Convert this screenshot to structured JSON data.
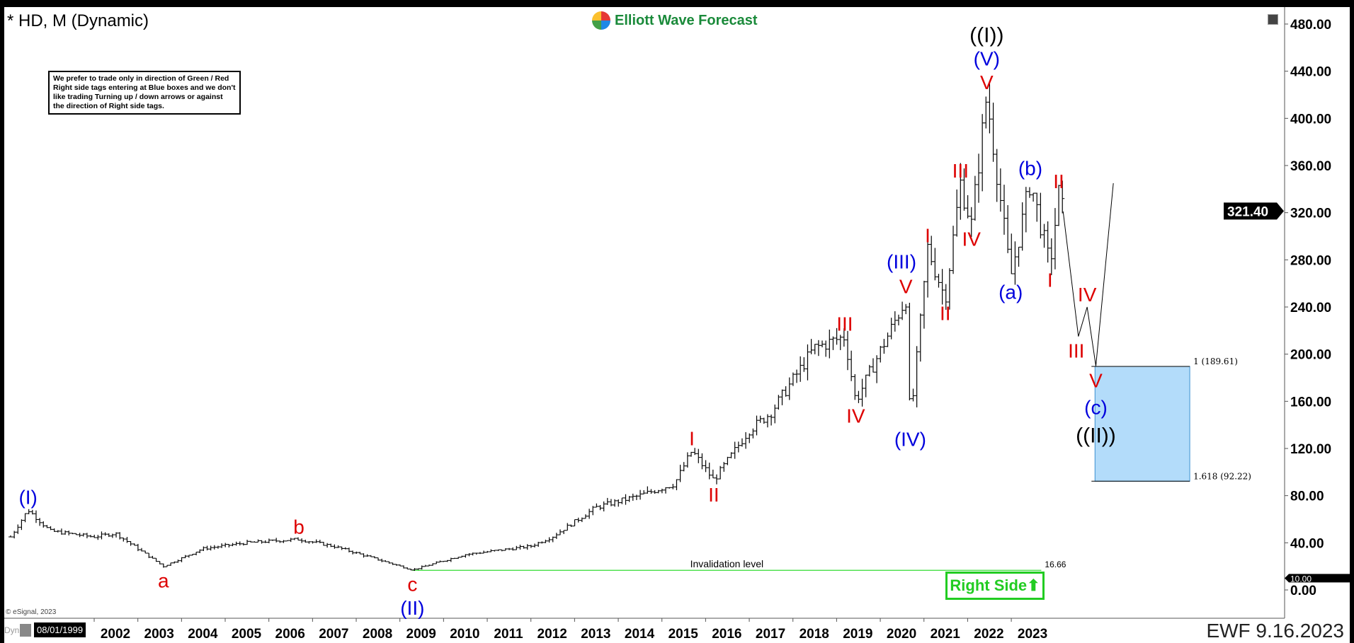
{
  "header": {
    "title": "* HD, M (Dynamic)",
    "logo": "Elliott Wave Forecast"
  },
  "note": "We prefer to trade only in direction of Green / Red Right side tags entering at Blue boxes and we don't like trading Turning up / down arrows or against the direction of Right side tags.",
  "footer": {
    "dyn": "Dyn",
    "start_date": "08/01/1999",
    "copyright": "© eSignal, 2023",
    "stamp": "EWF 9.16.2023"
  },
  "right_side": {
    "label": "Right Side",
    "arrow": "⬆",
    "color": "#22cc22"
  },
  "chart_data": {
    "type": "ohlc-bar",
    "symbol": "HD",
    "interval": "M",
    "ylim": [
      -20,
      500
    ],
    "yticks": [
      "480.00",
      "440.00",
      "400.00",
      "360.00",
      "320.00",
      "280.00",
      "240.00",
      "200.00",
      "160.00",
      "120.00",
      "80.00",
      "40.00",
      "0.00"
    ],
    "ytick_values": [
      480,
      440,
      400,
      360,
      320,
      280,
      240,
      200,
      160,
      120,
      80,
      40,
      0
    ],
    "xticks": [
      "2002",
      "2003",
      "2004",
      "2005",
      "2006",
      "2007",
      "2008",
      "2009",
      "2010",
      "2011",
      "2012",
      "2013",
      "2014",
      "2015",
      "2016",
      "2017",
      "2018",
      "2019",
      "2020",
      "2021",
      "2022",
      "2023"
    ],
    "last_price": {
      "value": 321.4,
      "label": "321.40"
    },
    "marker_tag": {
      "value": 10,
      "label": "10.00"
    },
    "price_path": [
      [
        1999.6,
        45
      ],
      [
        2000.0,
        68
      ],
      [
        2000.5,
        50
      ],
      [
        2001.5,
        45
      ],
      [
        2002.0,
        48
      ],
      [
        2003.1,
        20
      ],
      [
        2004.0,
        35
      ],
      [
        2005.0,
        40
      ],
      [
        2006.2,
        43
      ],
      [
        2007.0,
        37
      ],
      [
        2008.8,
        17
      ],
      [
        2010.0,
        30
      ],
      [
        2011.5,
        37
      ],
      [
        2012.0,
        45
      ],
      [
        2013.0,
        70
      ],
      [
        2014.0,
        80
      ],
      [
        2014.8,
        90
      ],
      [
        2015.2,
        118
      ],
      [
        2015.7,
        93
      ],
      [
        2016.5,
        135
      ],
      [
        2017.0,
        150
      ],
      [
        2018.0,
        205
      ],
      [
        2018.7,
        215
      ],
      [
        2018.95,
        160
      ],
      [
        2020.1,
        247
      ],
      [
        2020.2,
        140
      ],
      [
        2020.6,
        290
      ],
      [
        2021.0,
        247
      ],
      [
        2021.35,
        345
      ],
      [
        2021.6,
        310
      ],
      [
        2021.95,
        420
      ],
      [
        2022.5,
        265
      ],
      [
        2022.95,
        347
      ],
      [
        2023.4,
        275
      ],
      [
        2023.6,
        336
      ],
      [
        2023.7,
        321
      ]
    ],
    "projection": [
      [
        2023.7,
        321
      ],
      [
        2024.05,
        215
      ],
      [
        2024.25,
        240
      ],
      [
        2024.45,
        190
      ],
      [
        2024.85,
        345
      ]
    ],
    "target_box": {
      "x": [
        2024.43,
        2026.6
      ],
      "top": 189.61,
      "bottom": 92.22,
      "top_label": "1 (189.61)",
      "bottom_label": "1.618 (92.22)",
      "color": "#b3dcfa"
    },
    "invalidation": {
      "value": 16.66,
      "label": "Invalidation level",
      "value_label": "16.66",
      "x": [
        2008.8,
        2023.2
      ],
      "color": "#33dd33"
    },
    "wave_labels": [
      {
        "t": "(I)",
        "x": 2000.0,
        "y": 68,
        "pos": "above",
        "c": "#0000dd"
      },
      {
        "t": "a",
        "x": 2003.1,
        "y": 20,
        "pos": "below",
        "c": "#dd0000"
      },
      {
        "t": "b",
        "x": 2006.2,
        "y": 43,
        "pos": "above",
        "c": "#dd0000"
      },
      {
        "t": "c",
        "x": 2008.8,
        "y": 17,
        "pos": "below",
        "c": "#dd0000"
      },
      {
        "t": "(II)",
        "x": 2008.8,
        "y": -3,
        "pos": "below",
        "c": "#0000dd"
      },
      {
        "t": "I",
        "x": 2015.2,
        "y": 118,
        "pos": "above",
        "c": "#dd0000"
      },
      {
        "t": "II",
        "x": 2015.7,
        "y": 93,
        "pos": "below",
        "c": "#dd0000"
      },
      {
        "t": "III",
        "x": 2018.7,
        "y": 215,
        "pos": "above",
        "c": "#dd0000"
      },
      {
        "t": "IV",
        "x": 2018.95,
        "y": 160,
        "pos": "below",
        "c": "#dd0000"
      },
      {
        "t": "V",
        "x": 2020.1,
        "y": 247,
        "pos": "above",
        "c": "#dd0000"
      },
      {
        "t": "(III)",
        "x": 2020.0,
        "y": 268,
        "pos": "above",
        "c": "#0000dd"
      },
      {
        "t": "(IV)",
        "x": 2020.2,
        "y": 140,
        "pos": "below",
        "c": "#0000dd"
      },
      {
        "t": "I",
        "x": 2020.6,
        "y": 290,
        "pos": "above",
        "c": "#dd0000"
      },
      {
        "t": "II",
        "x": 2021.0,
        "y": 247,
        "pos": "below",
        "c": "#dd0000"
      },
      {
        "t": "III",
        "x": 2021.35,
        "y": 345,
        "pos": "above",
        "c": "#dd0000"
      },
      {
        "t": "IV",
        "x": 2021.6,
        "y": 310,
        "pos": "below",
        "c": "#dd0000"
      },
      {
        "t": "V",
        "x": 2021.95,
        "y": 420,
        "pos": "above",
        "c": "#dd0000"
      },
      {
        "t": "(V)",
        "x": 2021.95,
        "y": 440,
        "pos": "above",
        "c": "#0000dd"
      },
      {
        "t": "((I))",
        "x": 2021.95,
        "y": 460,
        "pos": "above",
        "c": "#000000"
      },
      {
        "t": "(a)",
        "x": 2022.5,
        "y": 265,
        "pos": "below",
        "c": "#0000dd"
      },
      {
        "t": "(b)",
        "x": 2022.95,
        "y": 347,
        "pos": "above",
        "c": "#0000dd"
      },
      {
        "t": "I",
        "x": 2023.4,
        "y": 275,
        "pos": "below",
        "c": "#dd0000"
      },
      {
        "t": "II",
        "x": 2023.6,
        "y": 336,
        "pos": "above",
        "c": "#dd0000"
      },
      {
        "t": "III",
        "x": 2024.0,
        "y": 215,
        "pos": "below",
        "c": "#dd0000"
      },
      {
        "t": "IV",
        "x": 2024.25,
        "y": 240,
        "pos": "above",
        "c": "#dd0000"
      },
      {
        "t": "V",
        "x": 2024.45,
        "y": 190,
        "pos": "below",
        "c": "#dd0000"
      },
      {
        "t": "(c)",
        "x": 2024.45,
        "y": 167,
        "pos": "below",
        "c": "#0000dd"
      },
      {
        "t": "((II))",
        "x": 2024.45,
        "y": 143,
        "pos": "below",
        "c": "#000000"
      }
    ]
  }
}
